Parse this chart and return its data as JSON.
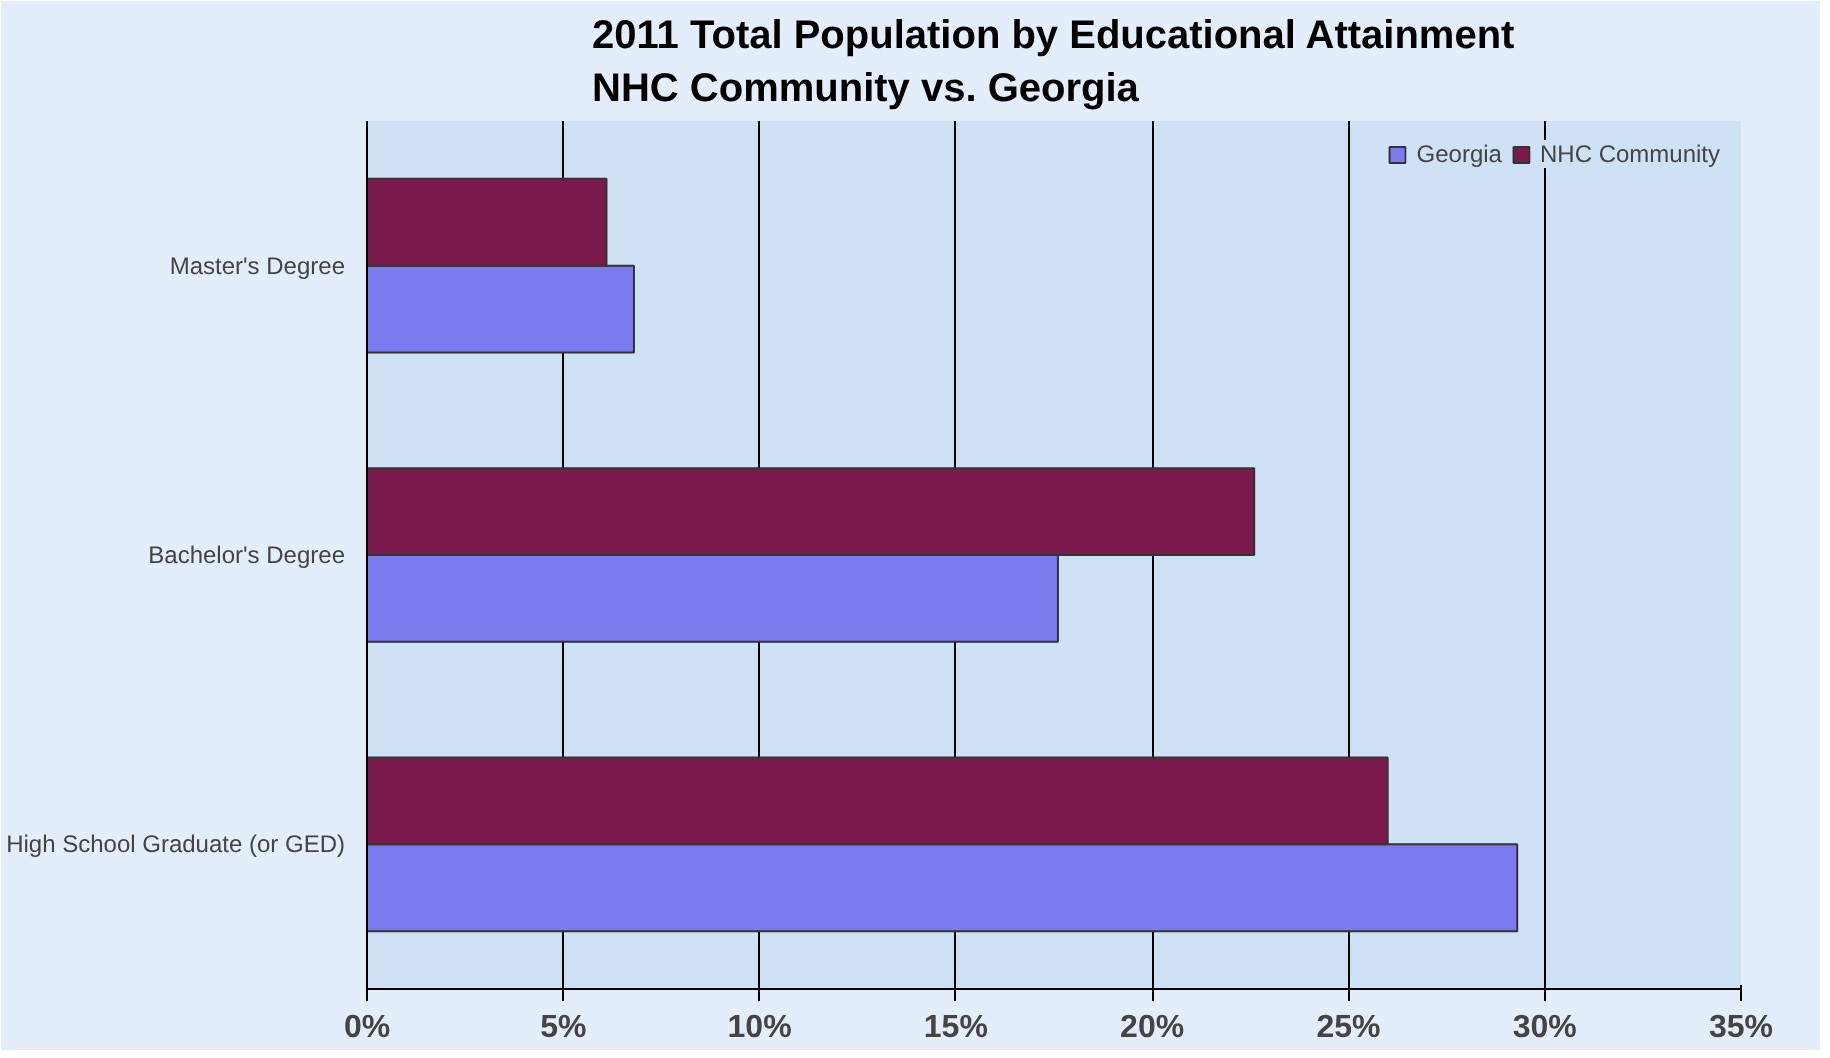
{
  "chart_data": {
    "type": "bar",
    "orientation": "horizontal",
    "title": "2011 Total Population by Educational Attainment\nNHC Community vs. Georgia",
    "categories": [
      "Master's Degree",
      "Bachelor's Degree",
      "High School Graduate (or GED)"
    ],
    "series": [
      {
        "name": "Georgia",
        "color": "#7b7bef",
        "values": [
          6.8,
          17.6,
          29.3
        ]
      },
      {
        "name": "NHC Community",
        "color": "#7a1a4c",
        "values": [
          6.1,
          22.6,
          26.0
        ]
      }
    ],
    "xlim": [
      0,
      35
    ],
    "xticks": [
      {
        "value": 0,
        "label": "0%"
      },
      {
        "value": 5,
        "label": "5%"
      },
      {
        "value": 10,
        "label": "10%"
      },
      {
        "value": 15,
        "label": "15%"
      },
      {
        "value": 20,
        "label": "20%"
      },
      {
        "value": 25,
        "label": "25%"
      },
      {
        "value": 30,
        "label": "30%"
      },
      {
        "value": 35,
        "label": "35%"
      }
    ],
    "grid": "x",
    "legend": "top right"
  }
}
